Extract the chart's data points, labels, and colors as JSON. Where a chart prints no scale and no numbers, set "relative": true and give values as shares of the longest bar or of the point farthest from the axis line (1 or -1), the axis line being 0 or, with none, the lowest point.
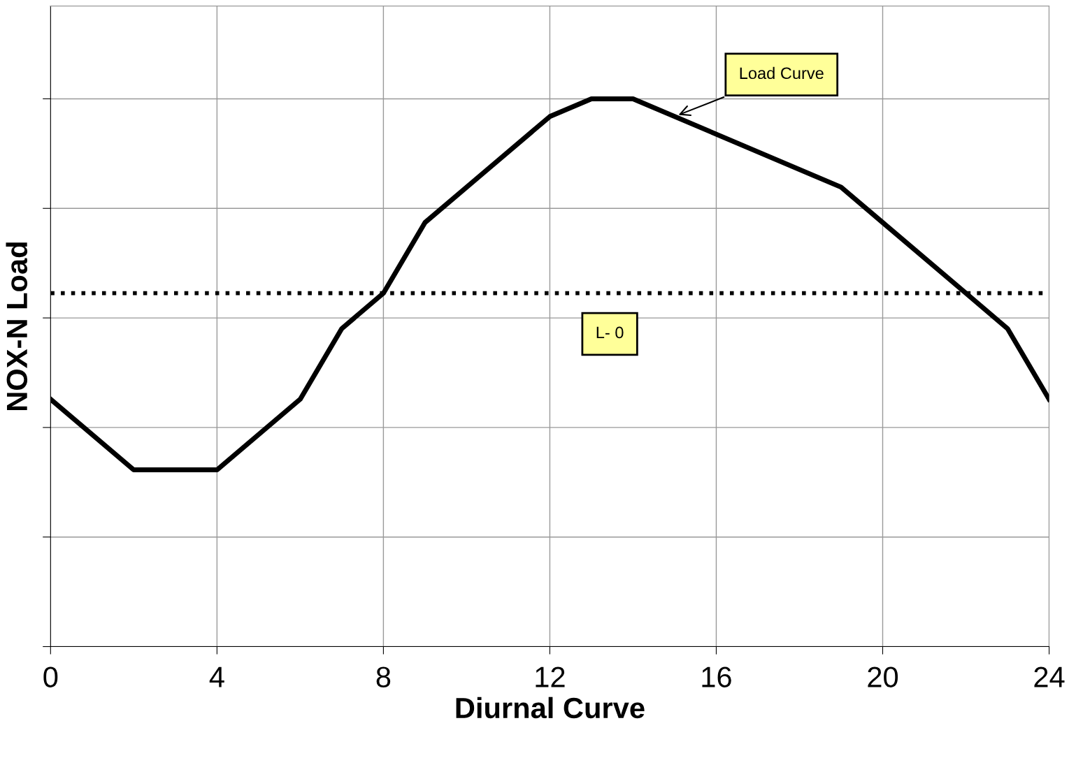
{
  "chart_data": {
    "type": "line",
    "xlabel": "Diurnal Curve",
    "ylabel": "NOX-N Load",
    "relative": true,
    "x": [
      0,
      2,
      4,
      6,
      7,
      8,
      9,
      12,
      13,
      14,
      19,
      20,
      22,
      23,
      24
    ],
    "series": [
      {
        "color": "#000000",
        "values": [
          0.4516,
          0.3226,
          0.3226,
          0.4516,
          0.5806,
          0.6452,
          0.7742,
          0.9677,
          1,
          1,
          0.8387,
          0.7742,
          0.6452,
          0.5806,
          0.4516
        ]
      }
    ],
    "xlim": [
      0,
      24
    ],
    "xticks": [
      0,
      4,
      8,
      12,
      16,
      20,
      24
    ],
    "ref_lines": [
      {
        "axis": "y",
        "value": 0.6452,
        "label": "L- 0",
        "color": "#000000",
        "line_style": "dotted"
      }
    ],
    "annotations": [
      "Load Curve"
    ],
    "grid": true,
    "line_style": "solid",
    "marker": "none"
  }
}
